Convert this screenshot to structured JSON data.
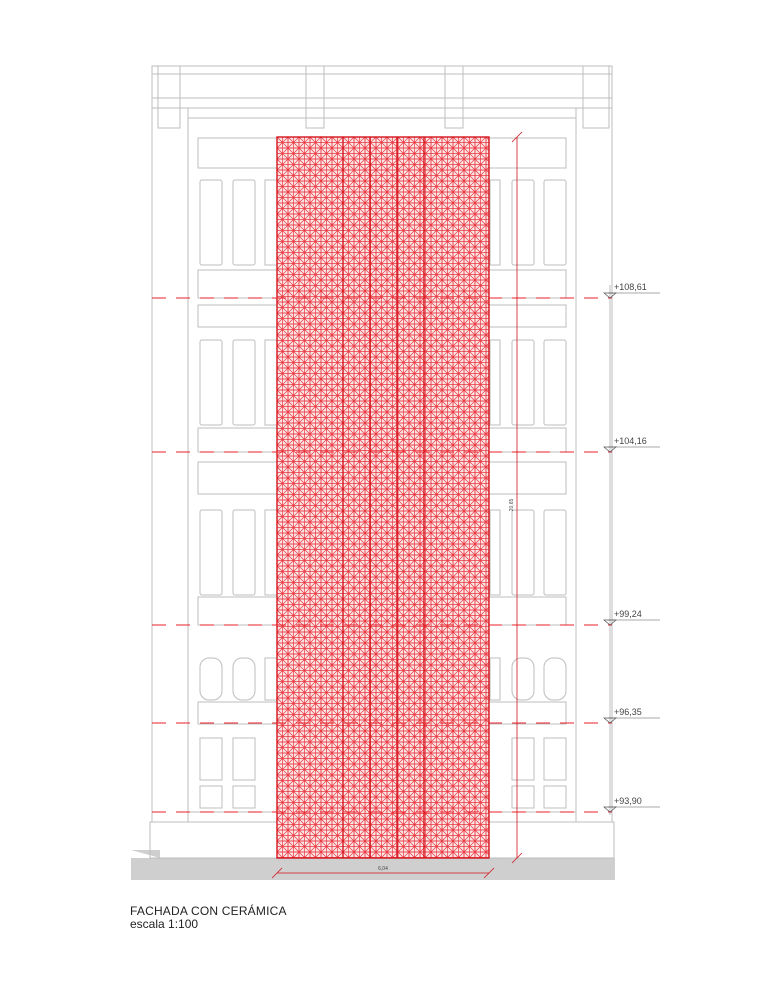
{
  "drawing": {
    "title": "FACHADA CON CERÁMICA",
    "scale": "escala 1:100",
    "levels": [
      "+108,61",
      "+104,16",
      "+99,24",
      "+96,35",
      "+93,90"
    ],
    "dimensions": {
      "width": "6,04",
      "height": "20,65"
    },
    "colors": {
      "ceramic": "#e8202a",
      "building": "#bdbdbd",
      "ground": "#cfcfcf"
    }
  }
}
